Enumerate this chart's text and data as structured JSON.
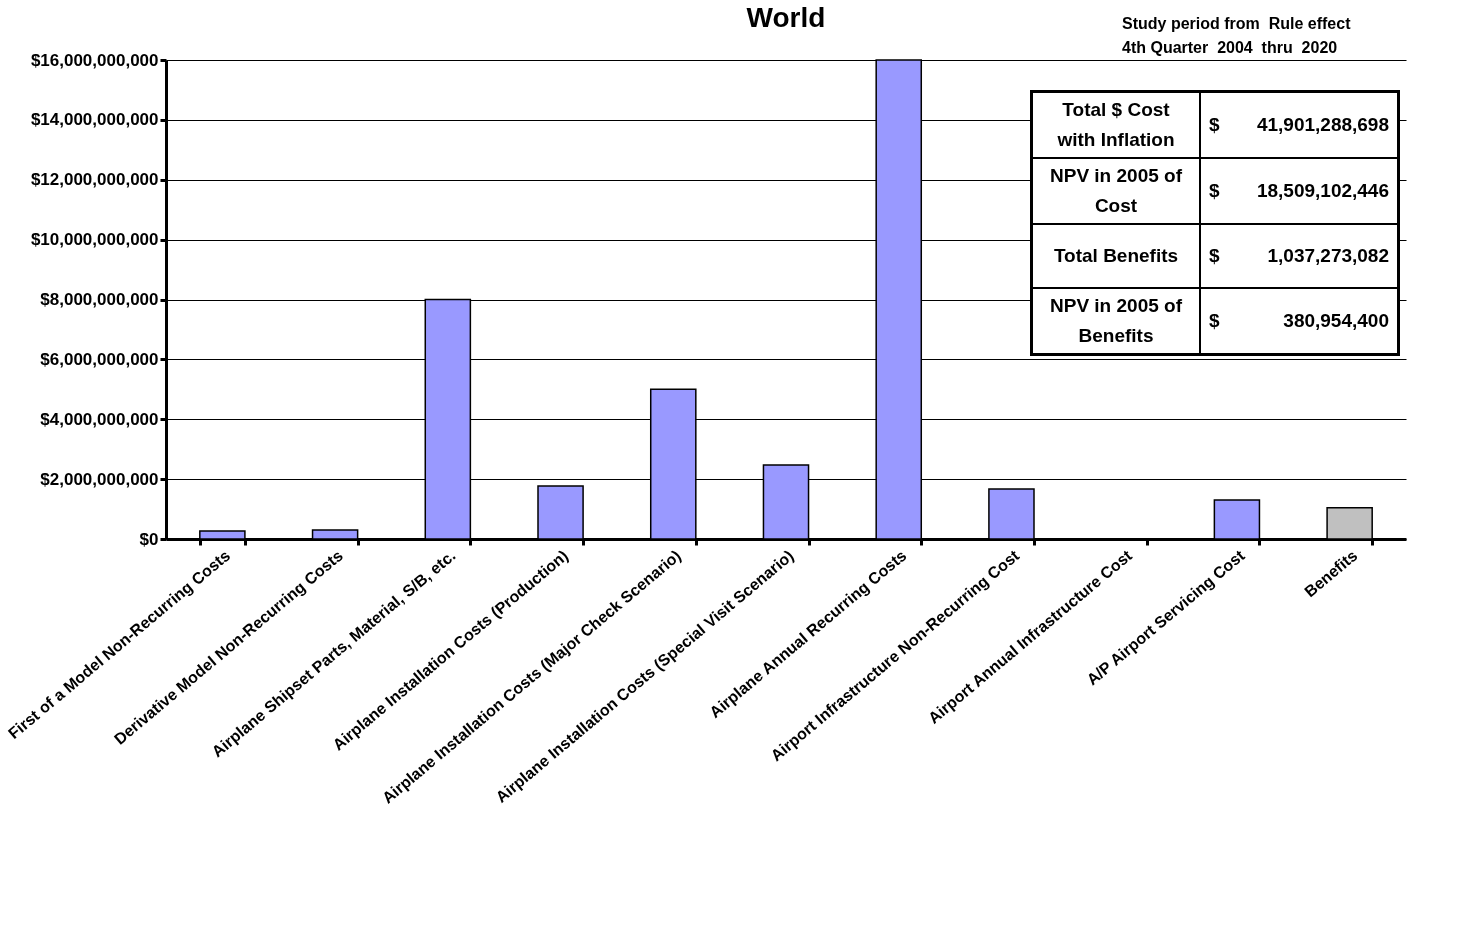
{
  "chart_data": {
    "type": "bar",
    "title": "World",
    "categories": [
      "First of a Model Non-Recurring Costs",
      "Derivative Model Non-Recurring Costs",
      "Airplane Shipset Parts, Material, S/B, etc.",
      "Airplane Installation Costs (Production)",
      "Airplane Installation Costs (Major Check Scenario)",
      "Airplane Installation Costs (Special Visit Scenario)",
      "Airplane Annual Recurring Costs",
      "Airport Infrastructure Non-Recurring Cost",
      "Airport Annual Infrastructure Cost",
      "A/P Airport Servicing Cost",
      "Benefits"
    ],
    "values": [
      270000000,
      300000000,
      8000000000,
      1770000000,
      5000000000,
      2470000000,
      16000000000,
      1670000000,
      null,
      1300000000,
      1040000000
    ],
    "colors": [
      "#9999ff",
      "#9999ff",
      "#9999ff",
      "#9999ff",
      "#9999ff",
      "#9999ff",
      "#9999ff",
      "#9999ff",
      "#9999ff",
      "#9999ff",
      "#c0c0c0"
    ],
    "ylim": [
      0,
      16000000000
    ],
    "yticks": [
      {
        "value": 0,
        "label": "$0"
      },
      {
        "value": 2000000000,
        "label": "$2,000,000,000"
      },
      {
        "value": 4000000000,
        "label": "$4,000,000,000"
      },
      {
        "value": 6000000000,
        "label": "$6,000,000,000"
      },
      {
        "value": 8000000000,
        "label": "$8,000,000,000"
      },
      {
        "value": 10000000000,
        "label": "$10,000,000,000"
      },
      {
        "value": 12000000000,
        "label": "$12,000,000,000"
      },
      {
        "value": 14000000000,
        "label": "$14,000,000,000"
      },
      {
        "value": 16000000000,
        "label": "$16,000,000,000"
      }
    ],
    "grid": "y",
    "annotations": [
      "Study period from  Rule effect",
      "4th Quarter  2004  thru  2020",
      "Total $ Cost with Inflation",
      "$ 41,901,288,698",
      "NPV in 2005 of Cost",
      "$ 18,509,102,446",
      "Total Benefits",
      "$ 1,037,273,082",
      "NPV in 2005 of Benefits",
      "$ 380,954,400"
    ]
  }
}
